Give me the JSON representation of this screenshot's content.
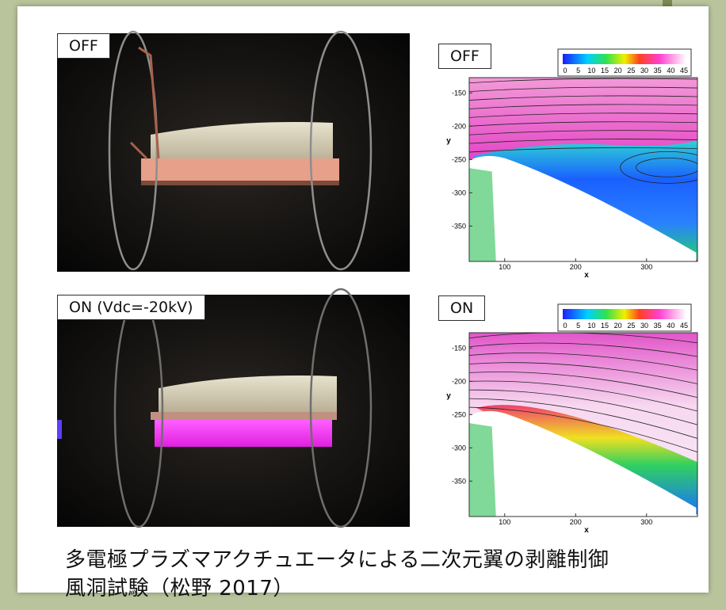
{
  "panels": [
    {
      "label": "OFF"
    },
    {
      "label": "OFF"
    },
    {
      "label": "ON (Vdc=-20kV)"
    },
    {
      "label": "ON"
    }
  ],
  "plot": {
    "colorbar_ticks": [
      0,
      5,
      10,
      15,
      20,
      25,
      30,
      35,
      40,
      45
    ],
    "yticks": [
      -150,
      -200,
      -250,
      -300,
      -350
    ],
    "xticks": [
      100,
      200,
      300
    ],
    "xlabel": "x",
    "ylabel": "y"
  },
  "caption": [
    "多電極プラズマアクチュエータによる二次元翼の剥離制御",
    "風洞試験（松野 2017）"
  ]
}
